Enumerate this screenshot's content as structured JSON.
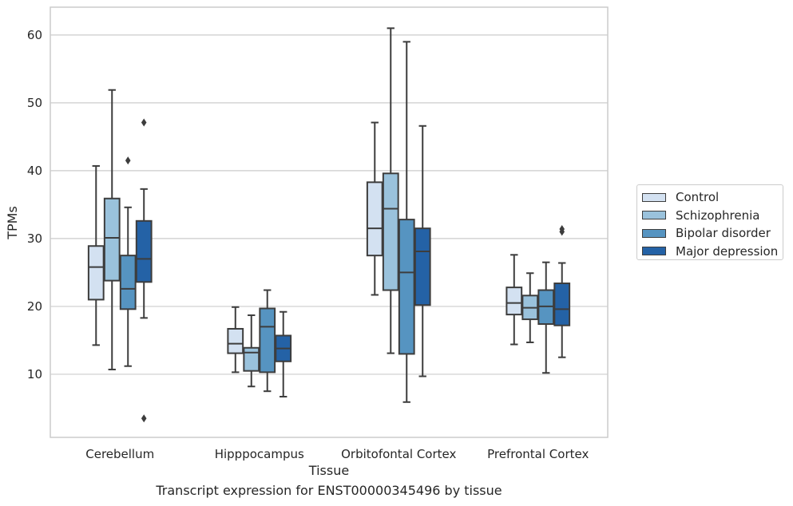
{
  "chart_data": {
    "type": "boxplot",
    "xlabel": "Tissue",
    "ylabel": "TPMs",
    "ylim": [
      0.7,
      64.1
    ],
    "yticks": [
      10,
      20,
      30,
      40,
      50,
      60
    ],
    "grid": "horizontal",
    "legend_position": "right",
    "categories": [
      "Cerebellum",
      "Hipppocampus",
      "Orbitofontal Cortex",
      "Prefrontal Cortex"
    ],
    "series": [
      {
        "name": "Control",
        "color": "#d3e1f1",
        "boxes": [
          {
            "whislo": 14.3,
            "q1": 21.0,
            "med": 25.8,
            "q3": 28.9,
            "whishi": 40.7,
            "fliers": []
          },
          {
            "whislo": 10.3,
            "q1": 13.1,
            "med": 14.5,
            "q3": 16.7,
            "whishi": 19.9,
            "fliers": []
          },
          {
            "whislo": 21.7,
            "q1": 27.5,
            "med": 31.5,
            "q3": 38.3,
            "whishi": 47.1,
            "fliers": []
          },
          {
            "whislo": 14.4,
            "q1": 18.8,
            "med": 20.5,
            "q3": 22.8,
            "whishi": 27.6,
            "fliers": []
          }
        ]
      },
      {
        "name": "Schizophrenia",
        "color": "#9ac2dc",
        "boxes": [
          {
            "whislo": 10.7,
            "q1": 23.8,
            "med": 30.1,
            "q3": 35.9,
            "whishi": 51.9,
            "fliers": []
          },
          {
            "whislo": 8.2,
            "q1": 10.5,
            "med": 13.2,
            "q3": 13.9,
            "whishi": 18.7,
            "fliers": []
          },
          {
            "whislo": 13.1,
            "q1": 22.4,
            "med": 34.4,
            "q3": 39.6,
            "whishi": 61.0,
            "fliers": []
          },
          {
            "whislo": 14.7,
            "q1": 18.1,
            "med": 19.8,
            "q3": 21.6,
            "whishi": 24.9,
            "fliers": []
          }
        ]
      },
      {
        "name": "Bipolar disorder",
        "color": "#5694c1",
        "boxes": [
          {
            "whislo": 11.2,
            "q1": 19.6,
            "med": 22.6,
            "q3": 27.5,
            "whishi": 34.6,
            "fliers": [
              41.5
            ]
          },
          {
            "whislo": 7.5,
            "q1": 10.3,
            "med": 17.0,
            "q3": 19.7,
            "whishi": 22.4,
            "fliers": []
          },
          {
            "whislo": 5.9,
            "q1": 13.0,
            "med": 25.0,
            "q3": 32.8,
            "whishi": 59.0,
            "fliers": []
          },
          {
            "whislo": 10.2,
            "q1": 17.4,
            "med": 20.0,
            "q3": 22.4,
            "whishi": 26.5,
            "fliers": []
          }
        ]
      },
      {
        "name": "Major depression",
        "color": "#2462a6",
        "boxes": [
          {
            "whislo": 18.3,
            "q1": 23.6,
            "med": 27.0,
            "q3": 32.6,
            "whishi": 37.3,
            "fliers": [
              47.1,
              3.5
            ]
          },
          {
            "whislo": 6.7,
            "q1": 11.9,
            "med": 13.8,
            "q3": 15.7,
            "whishi": 19.2,
            "fliers": []
          },
          {
            "whislo": 9.7,
            "q1": 20.2,
            "med": 28.1,
            "q3": 31.5,
            "whishi": 46.6,
            "fliers": []
          },
          {
            "whislo": 12.5,
            "q1": 17.2,
            "med": 19.6,
            "q3": 23.4,
            "whishi": 26.4,
            "fliers": [
              31.0,
              31.4
            ]
          }
        ]
      }
    ]
  },
  "caption": "Transcript expression for ENST00000345496 by tissue"
}
